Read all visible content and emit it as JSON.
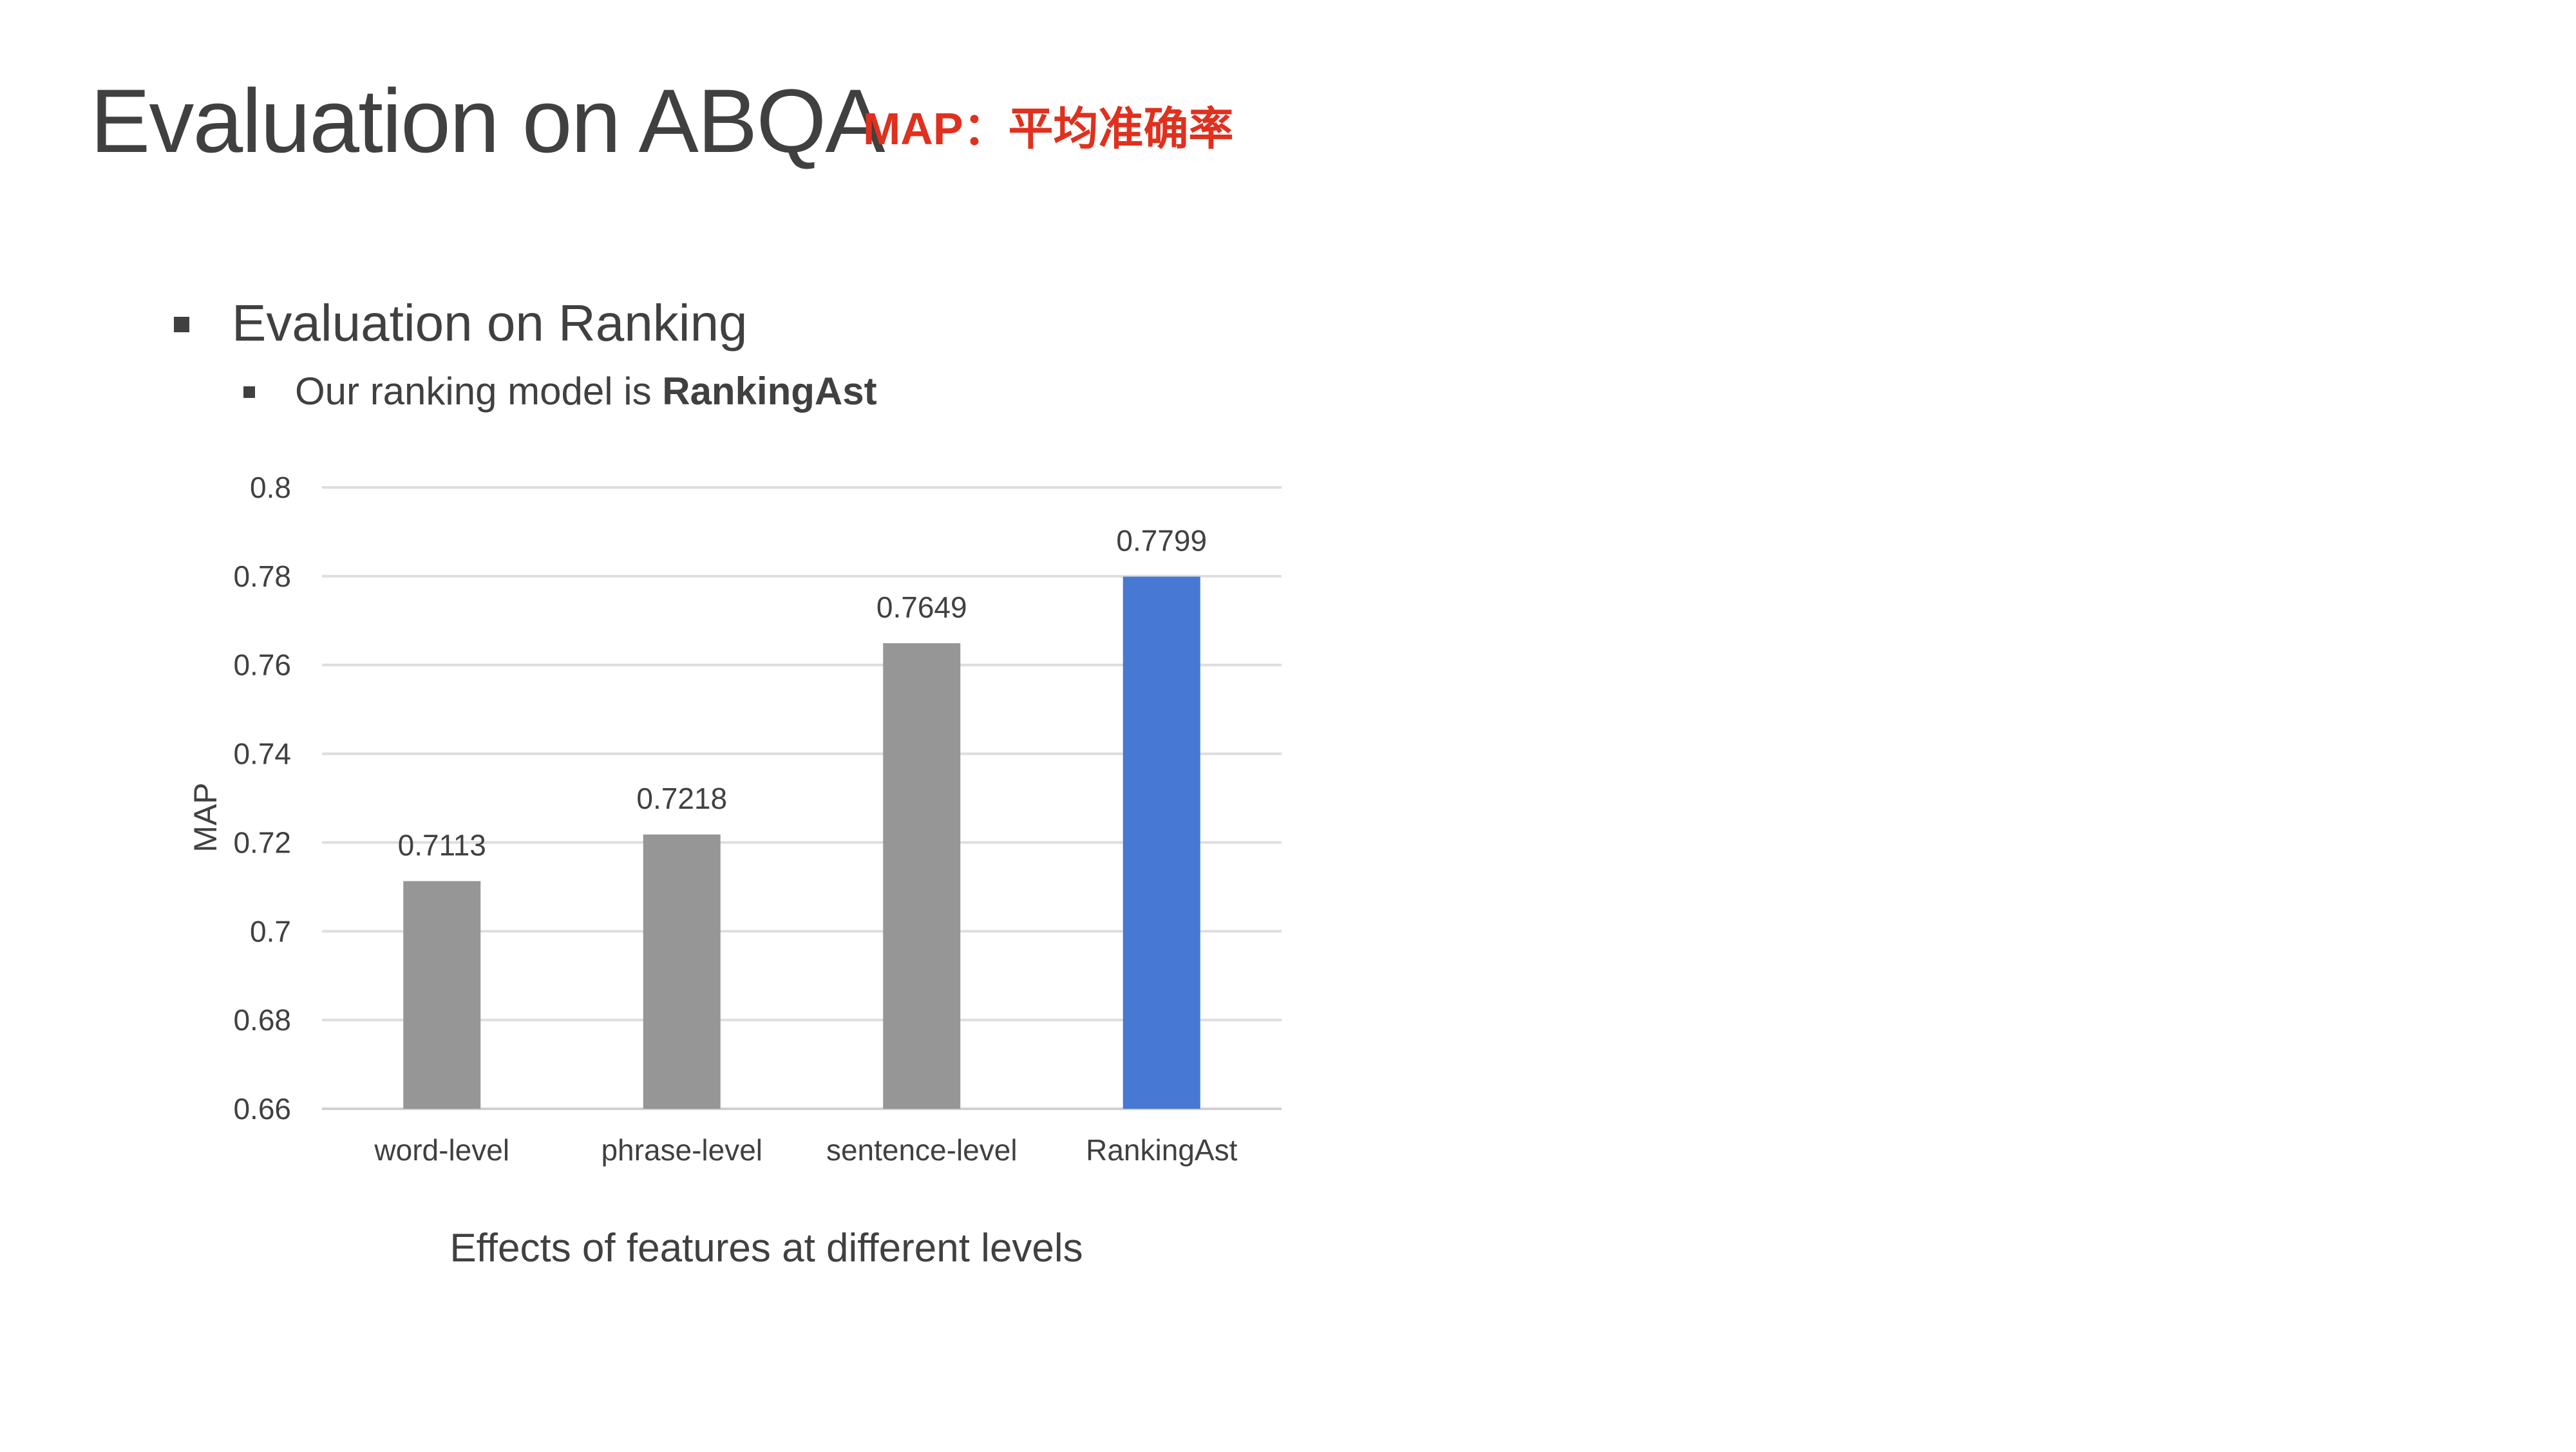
{
  "slide": {
    "title": "Evaluation on ABQA",
    "note": "MAP：平均准确率",
    "note_color": "#e0301e",
    "bullet_1": "Evaluation on Ranking",
    "bullet_2_prefix": "Our ranking model is ",
    "bullet_2_bold": "RankingAst",
    "caption": "Effects of features at different levels"
  },
  "chart_data": {
    "type": "bar",
    "categories": [
      "word-level",
      "phrase-level",
      "sentence-level",
      "RankingAst"
    ],
    "values": [
      0.7113,
      0.7218,
      0.7649,
      0.7799
    ],
    "data_labels": [
      "0.7113",
      "0.7218",
      "0.7649",
      "0.7799"
    ],
    "bar_colors": [
      "#969696",
      "#969696",
      "#969696",
      "#4678d4"
    ],
    "ylabel": "MAP",
    "xlabel": "",
    "ylim": [
      0.66,
      0.8
    ],
    "yticks": [
      0.66,
      0.68,
      0.7,
      0.72,
      0.74,
      0.76,
      0.78,
      0.8
    ],
    "ytick_labels": [
      "0.66",
      "0.68",
      "0.7",
      "0.72",
      "0.74",
      "0.76",
      "0.78",
      "0.8"
    ],
    "grid": true,
    "legend": "none"
  }
}
